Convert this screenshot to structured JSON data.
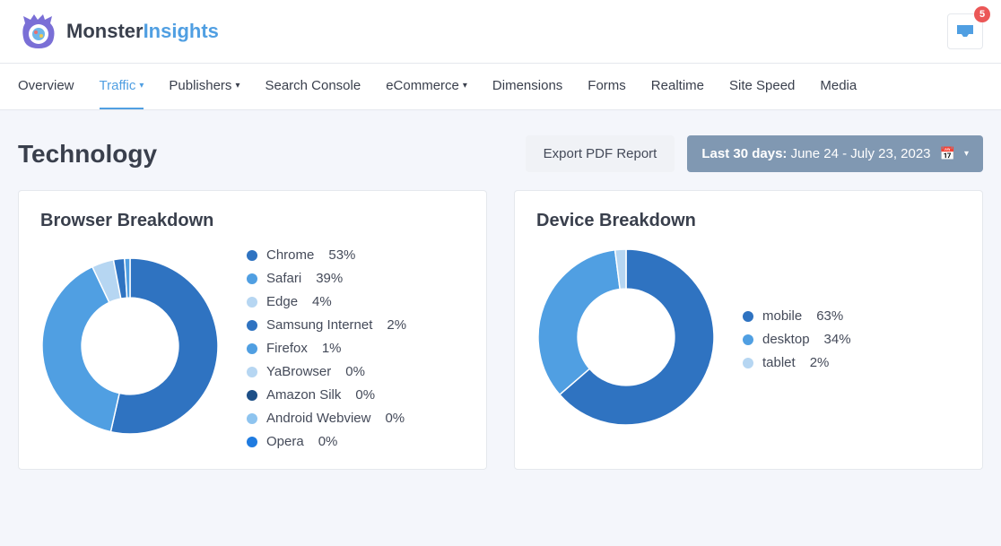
{
  "brand": {
    "part1": "Monster",
    "part2": "Insights"
  },
  "inbox": {
    "count": "5"
  },
  "tabs": [
    {
      "label": "Overview",
      "dropdown": false,
      "active": false
    },
    {
      "label": "Traffic",
      "dropdown": true,
      "active": true
    },
    {
      "label": "Publishers",
      "dropdown": true,
      "active": false
    },
    {
      "label": "Search Console",
      "dropdown": false,
      "active": false
    },
    {
      "label": "eCommerce",
      "dropdown": true,
      "active": false
    },
    {
      "label": "Dimensions",
      "dropdown": false,
      "active": false
    },
    {
      "label": "Forms",
      "dropdown": false,
      "active": false
    },
    {
      "label": "Realtime",
      "dropdown": false,
      "active": false
    },
    {
      "label": "Site Speed",
      "dropdown": false,
      "active": false
    },
    {
      "label": "Media",
      "dropdown": false,
      "active": false
    }
  ],
  "page": {
    "title": "Technology"
  },
  "toolbar": {
    "export_label": "Export PDF Report",
    "date_prefix": "Last 30 days:",
    "date_range": "June 24 - July 23, 2023"
  },
  "charts": {
    "browser": {
      "title": "Browser Breakdown",
      "type": "donut",
      "size": 200,
      "inner_ratio": 0.55,
      "series": [
        {
          "name": "Chrome",
          "pct": "53%",
          "value": 53,
          "color": "#2f73c1"
        },
        {
          "name": "Safari",
          "pct": "39%",
          "value": 39,
          "color": "#509fe2"
        },
        {
          "name": "Edge",
          "pct": "4%",
          "value": 4,
          "color": "#b6d6f2"
        },
        {
          "name": "Samsung Internet",
          "pct": "2%",
          "value": 2,
          "color": "#2f73c1"
        },
        {
          "name": "Firefox",
          "pct": "1%",
          "value": 1,
          "color": "#509fe2"
        },
        {
          "name": "YaBrowser",
          "pct": "0%",
          "value": 0,
          "color": "#b6d6f2"
        },
        {
          "name": "Amazon Silk",
          "pct": "0%",
          "value": 0,
          "color": "#1d4f87"
        },
        {
          "name": "Android Webview",
          "pct": "0%",
          "value": 0,
          "color": "#8ec4ef"
        },
        {
          "name": "Opera",
          "pct": "0%",
          "value": 0,
          "color": "#1f7be0"
        }
      ]
    },
    "device": {
      "title": "Device Breakdown",
      "type": "donut",
      "size": 200,
      "inner_ratio": 0.55,
      "series": [
        {
          "name": "mobile",
          "pct": "63%",
          "value": 63,
          "color": "#2f73c1"
        },
        {
          "name": "desktop",
          "pct": "34%",
          "value": 34,
          "color": "#509fe2"
        },
        {
          "name": "tablet",
          "pct": "2%",
          "value": 2,
          "color": "#b6d6f2"
        }
      ]
    }
  },
  "colors": {
    "page_bg": "#f4f6fb",
    "card_border": "#e5e8ed",
    "text_primary": "#393f4c",
    "accent": "#509fe2",
    "date_btn_bg": "#8098b2",
    "badge_bg": "#eb5757"
  }
}
